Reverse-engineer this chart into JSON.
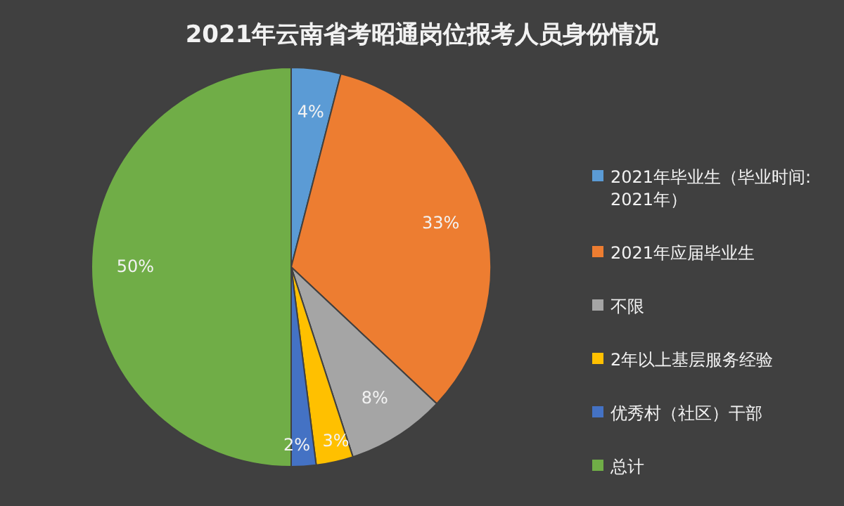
{
  "chart_data": {
    "type": "pie",
    "title": "2021年云南省考昭通岗位报考人员身份情况",
    "categories": [
      "2021年毕业生（毕业时间:2021年）",
      "2021年应届毕业生",
      "不限",
      "2年以上基层服务经验",
      "优秀村（社区）干部",
      "总计"
    ],
    "values": [
      4,
      33,
      8,
      3,
      2,
      50
    ],
    "colors": [
      "#5b9bd5",
      "#ed7d31",
      "#a5a5a5",
      "#ffc000",
      "#4472c4",
      "#70ad47"
    ],
    "value_labels": [
      "4%",
      "33%",
      "8%",
      "3%",
      "2%",
      "50%"
    ],
    "legend": "right"
  }
}
